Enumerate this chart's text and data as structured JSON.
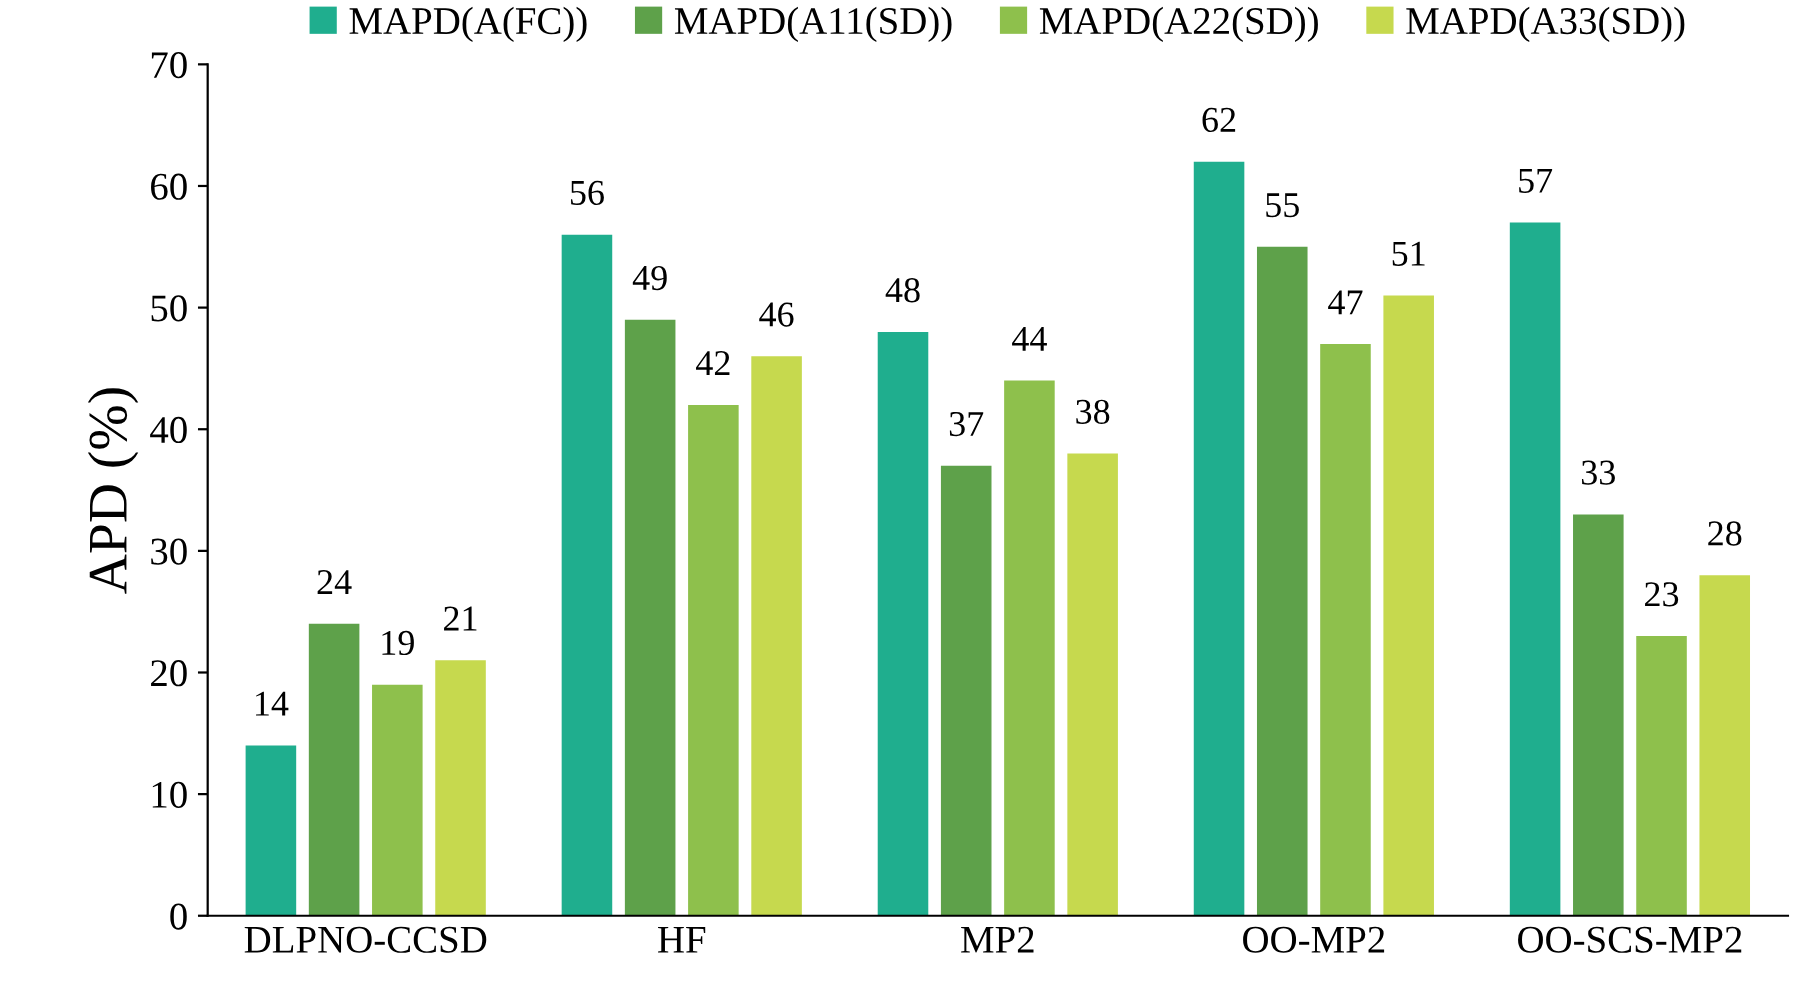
{
  "chart_data": {
    "type": "bar",
    "ylabel": "APD (%)",
    "categories": [
      "DLPNO-CCSD",
      "HF",
      "MP2",
      "OO-MP2",
      "OO-SCS-MP2"
    ],
    "series": [
      {
        "name": "MAPD(A(FC))",
        "color": "#1fae8e",
        "values": [
          14,
          56,
          48,
          62,
          57
        ]
      },
      {
        "name": "MAPD(A11(SD))",
        "color": "#5ea14a",
        "values": [
          24,
          49,
          37,
          55,
          33
        ]
      },
      {
        "name": "MAPD(A22(SD))",
        "color": "#8ec04c",
        "values": [
          19,
          42,
          44,
          47,
          23
        ]
      },
      {
        "name": "MAPD(A33(SD))",
        "color": "#c6d94e",
        "values": [
          21,
          46,
          38,
          51,
          28
        ]
      }
    ],
    "ylim": [
      0,
      70
    ],
    "yticks": [
      0,
      10,
      20,
      30,
      40,
      50,
      60,
      70
    ],
    "data_labels": true,
    "legend": "top",
    "grid": false
  }
}
